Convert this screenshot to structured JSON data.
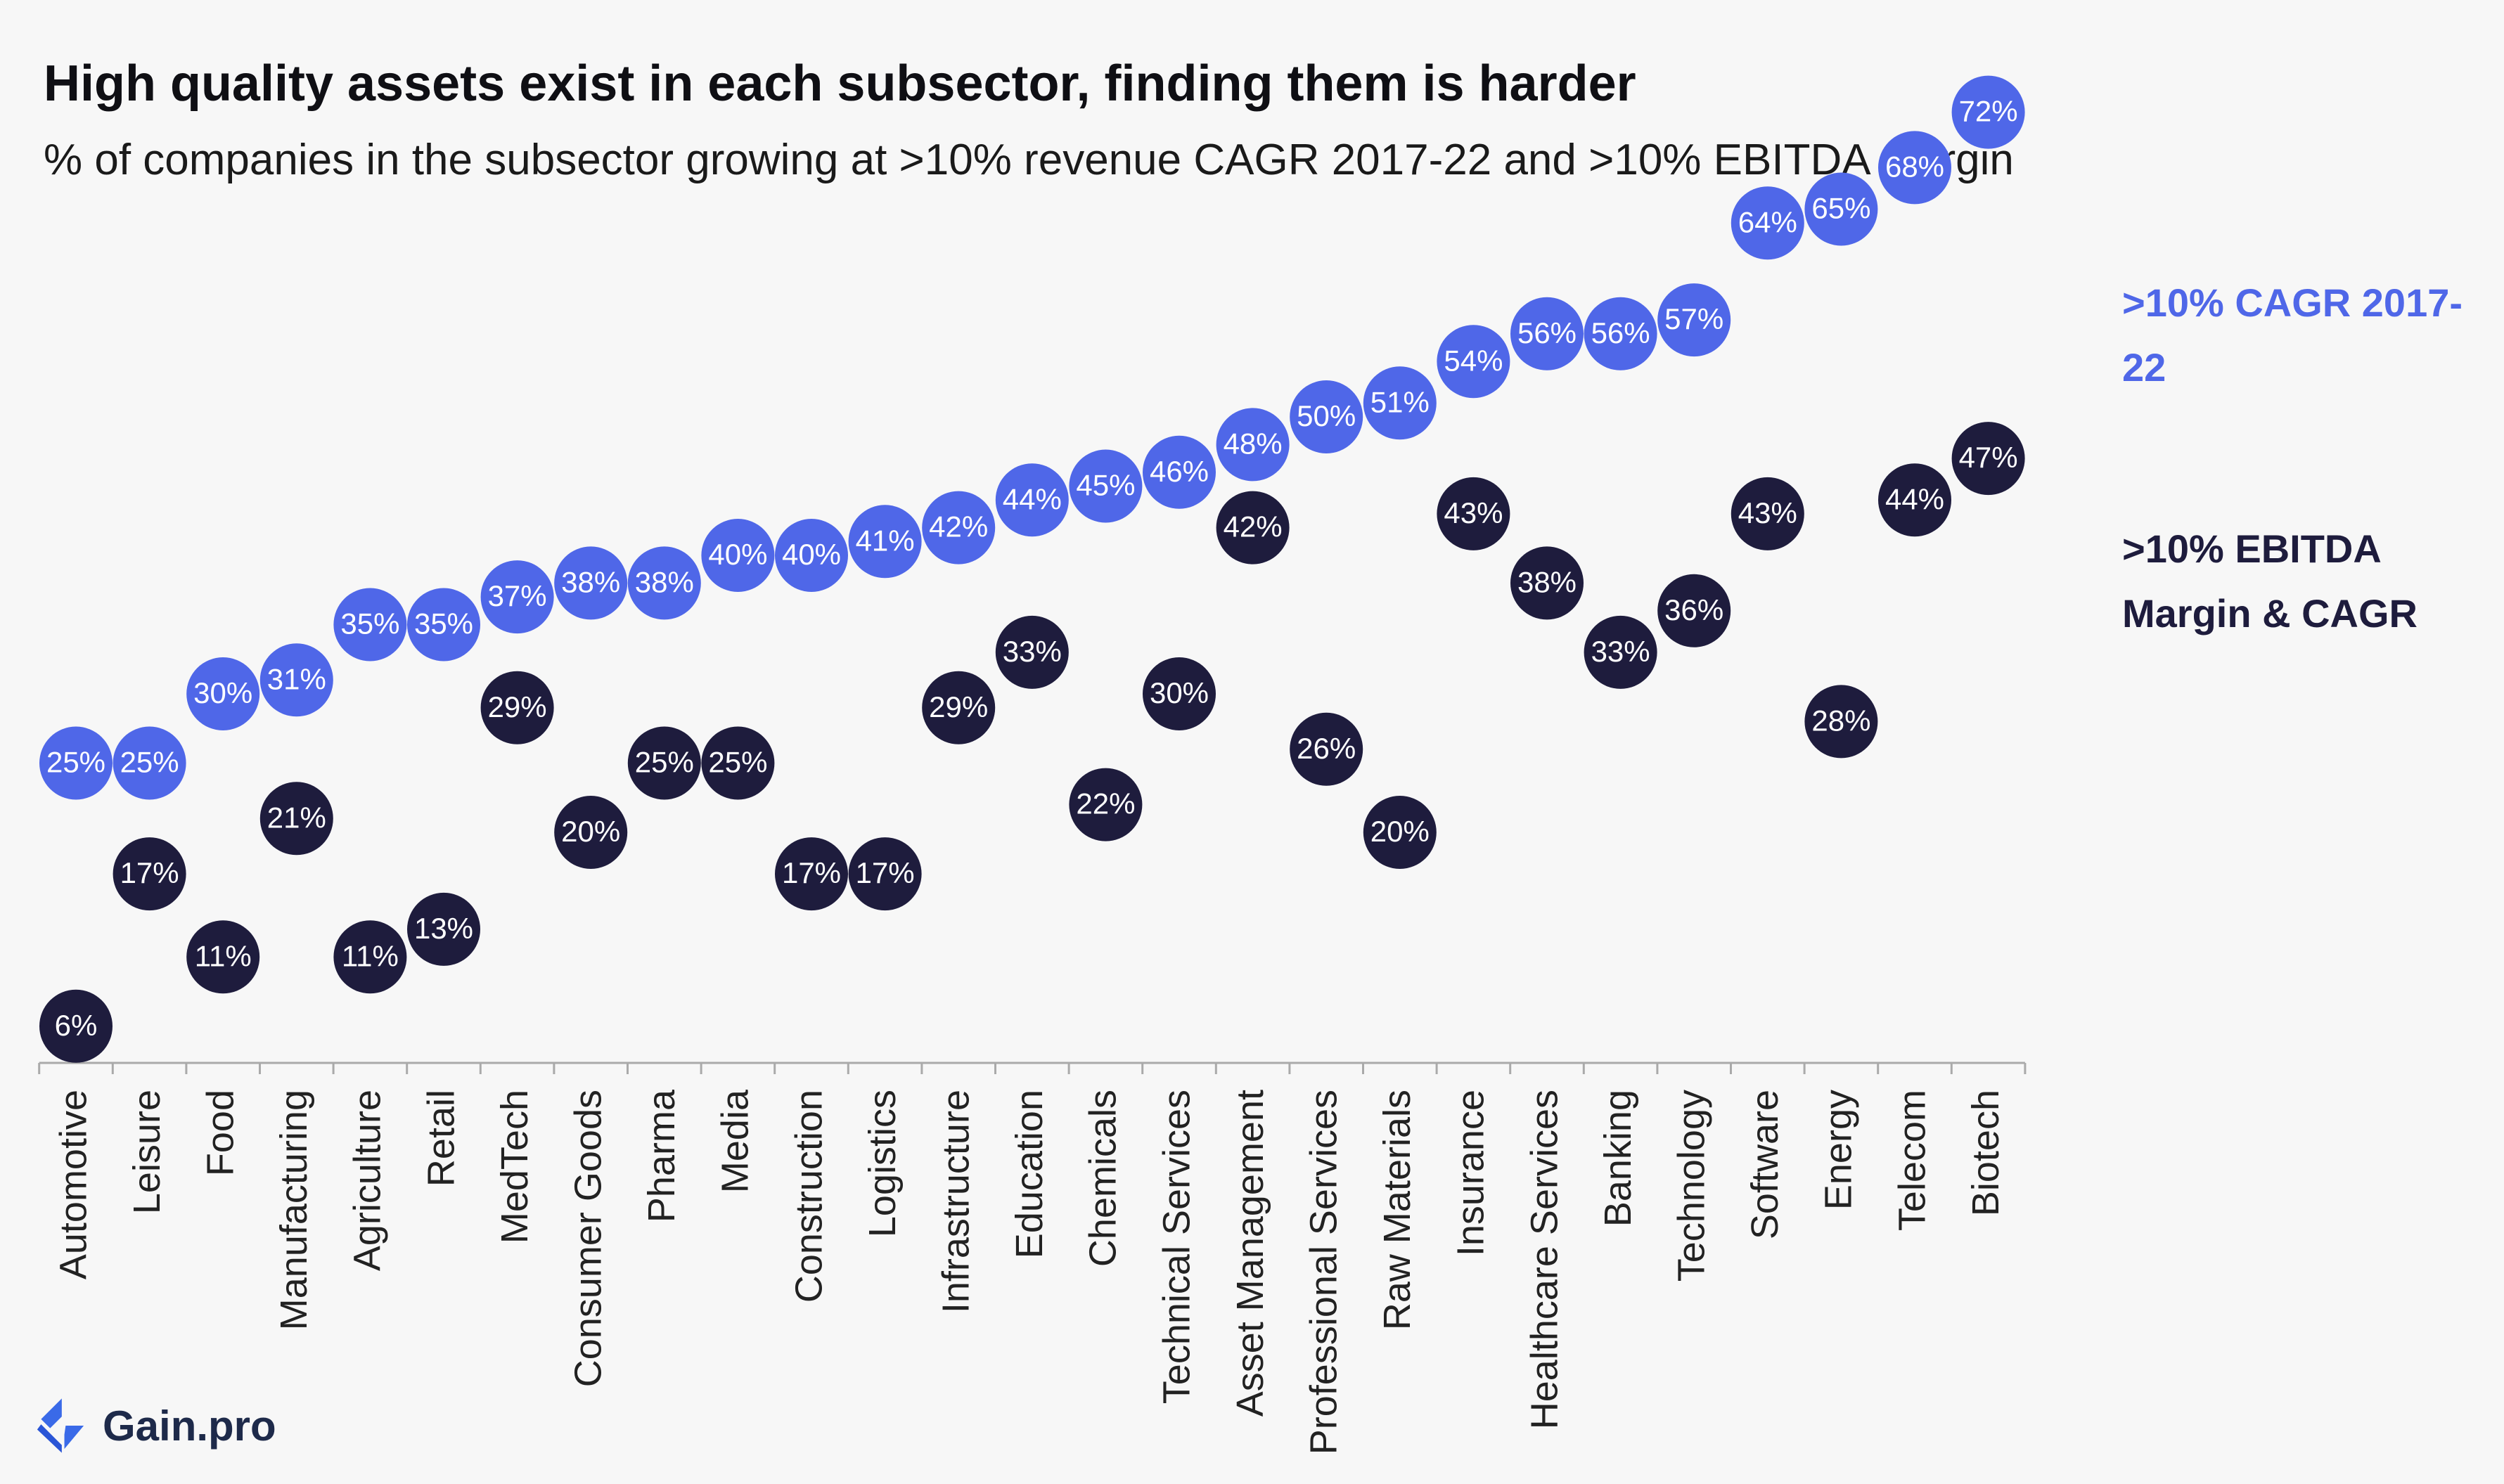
{
  "colors": {
    "cagr": "#4f67e8",
    "ebitda": "#1e1c3d",
    "axis": "#aaaaaa",
    "logo": "#3a6ae8"
  },
  "logo": {
    "icon": "gain-pro-logo-icon",
    "text": "Gain.pro"
  },
  "chart_data": {
    "type": "scatter",
    "title": "High quality assets exist in each subsector, finding them is harder",
    "subtitle": "% of companies in the subsector growing at >10% revenue CAGR 2017-22 and >10% EBITDA margin",
    "xlabel": "",
    "ylabel": "",
    "ylim": [
      0,
      80
    ],
    "grid": false,
    "legend_position": "right",
    "categories": [
      "Automotive",
      "Leisure",
      "Food",
      "Manufacturing",
      "Agriculture",
      "Retail",
      "MedTech",
      "Consumer Goods",
      "Pharma",
      "Media",
      "Construction",
      "Logistics",
      "Infrastructure",
      "Education",
      "Chemicals",
      "Technical Services",
      "Asset Management",
      "Professional Services",
      "Raw Materials",
      "Insurance",
      "Healthcare Services",
      "Banking",
      "Technology",
      "Software",
      "Energy",
      "Telecom",
      "Biotech"
    ],
    "series": [
      {
        "name": ">10% CAGR 2017-22",
        "legend_lines": [
          ">10% CAGR 2017-",
          "22"
        ],
        "values": [
          25,
          25,
          30,
          31,
          35,
          35,
          37,
          38,
          38,
          40,
          40,
          41,
          42,
          44,
          45,
          46,
          48,
          50,
          51,
          54,
          56,
          56,
          57,
          64,
          65,
          68,
          72
        ],
        "labels": [
          "25%",
          "25%",
          "30%",
          "31%",
          "35%",
          "35%",
          "37%",
          "38%",
          "38%",
          "40%",
          "40%",
          "41%",
          "42%",
          "44%",
          "45%",
          "46%",
          "48%",
          "50%",
          "51%",
          "54%",
          "56%",
          "56%",
          "57%",
          "64%",
          "65%",
          "68%",
          "72%"
        ]
      },
      {
        "name": ">10% EBITDA Margin & CAGR",
        "legend_lines": [
          ">10% EBITDA",
          "Margin & CAGR"
        ],
        "values": [
          6,
          17,
          11,
          21,
          11,
          13,
          29,
          20,
          25,
          25,
          17,
          17,
          29,
          33,
          22,
          30,
          42,
          26,
          20,
          43,
          38,
          33,
          36,
          43,
          28,
          44,
          47
        ],
        "labels": [
          "6%",
          "17%",
          "11%",
          "21%",
          "11%",
          "13%",
          "29%",
          "20%",
          "25%",
          "25%",
          "17%",
          "17%",
          "29%",
          "33%",
          "22%",
          "30%",
          "42%",
          "26%",
          "20%",
          "43%",
          "38%",
          "33%",
          "36%",
          "43%",
          "28%",
          "44%",
          "47%"
        ]
      }
    ]
  }
}
